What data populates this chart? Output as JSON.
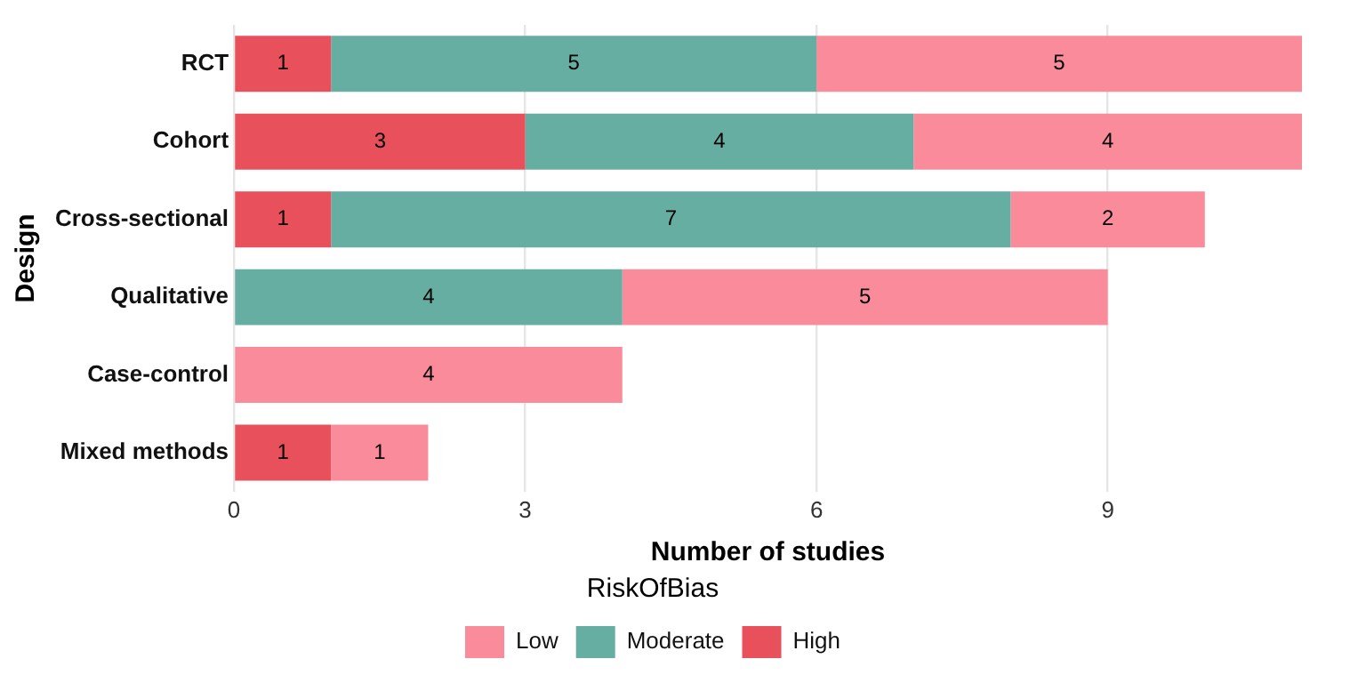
{
  "chart_data": {
    "type": "bar",
    "orientation": "horizontal",
    "stacked": true,
    "xlabel": "Number of studies",
    "ylabel": "Design",
    "legend_title": "RiskOfBias",
    "categories": [
      "RCT",
      "Cohort",
      "Cross-sectional",
      "Qualitative",
      "Case-control",
      "Mixed methods"
    ],
    "series": [
      {
        "name": "High",
        "color": "#e8505b",
        "values": [
          1,
          3,
          1,
          null,
          null,
          1
        ]
      },
      {
        "name": "Moderate",
        "color": "#66ada2",
        "values": [
          5,
          4,
          7,
          4,
          null,
          null
        ]
      },
      {
        "name": "Low",
        "color": "#f98b9b",
        "values": [
          5,
          4,
          2,
          5,
          4,
          1
        ]
      }
    ],
    "xlim": [
      0,
      11
    ],
    "xticks": [
      0,
      3,
      6,
      9
    ],
    "grid": "x",
    "legend": "bottom",
    "data_labels": true
  }
}
